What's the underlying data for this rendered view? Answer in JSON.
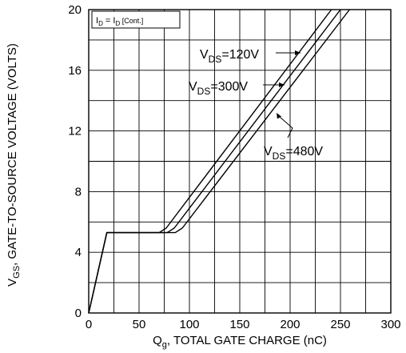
{
  "chart_data": {
    "type": "line",
    "xlabel": {
      "main": "Q",
      "sub": "g",
      "rest": ", TOTAL GATE CHARGE (nC)"
    },
    "ylabel": {
      "main": "V",
      "sub": "GS",
      "rest": ", GATE-TO-SOURCE VOLTAGE (VOLTS)"
    },
    "xlim": [
      0,
      300
    ],
    "ylim": [
      0,
      20
    ],
    "x_ticks": [
      0,
      50,
      100,
      150,
      200,
      250,
      300
    ],
    "y_ticks": [
      0,
      4,
      8,
      12,
      16,
      20
    ],
    "grid": true,
    "condition": {
      "a": "I",
      "a_sub": "D",
      "eq": " = I",
      "b_sub": "D",
      "b_rest": " [Cont.]"
    },
    "series": [
      {
        "name": "120V",
        "label": {
          "main": "V",
          "sub": "DS",
          "rest": "=120V"
        },
        "points": [
          [
            0,
            0
          ],
          [
            18,
            5.3
          ],
          [
            70,
            5.3
          ],
          [
            77,
            5.6
          ],
          [
            241,
            20
          ]
        ]
      },
      {
        "name": "300V",
        "label": {
          "main": "V",
          "sub": "DS",
          "rest": "=300V"
        },
        "points": [
          [
            0,
            0
          ],
          [
            18,
            5.3
          ],
          [
            78,
            5.3
          ],
          [
            85,
            5.6
          ],
          [
            250,
            20
          ]
        ]
      },
      {
        "name": "480V",
        "label": {
          "main": "V",
          "sub": "DS",
          "rest": "=480V"
        },
        "points": [
          [
            0,
            0
          ],
          [
            18,
            5.3
          ],
          [
            86,
            5.3
          ],
          [
            93,
            5.6
          ],
          [
            259,
            20
          ]
        ]
      }
    ]
  }
}
